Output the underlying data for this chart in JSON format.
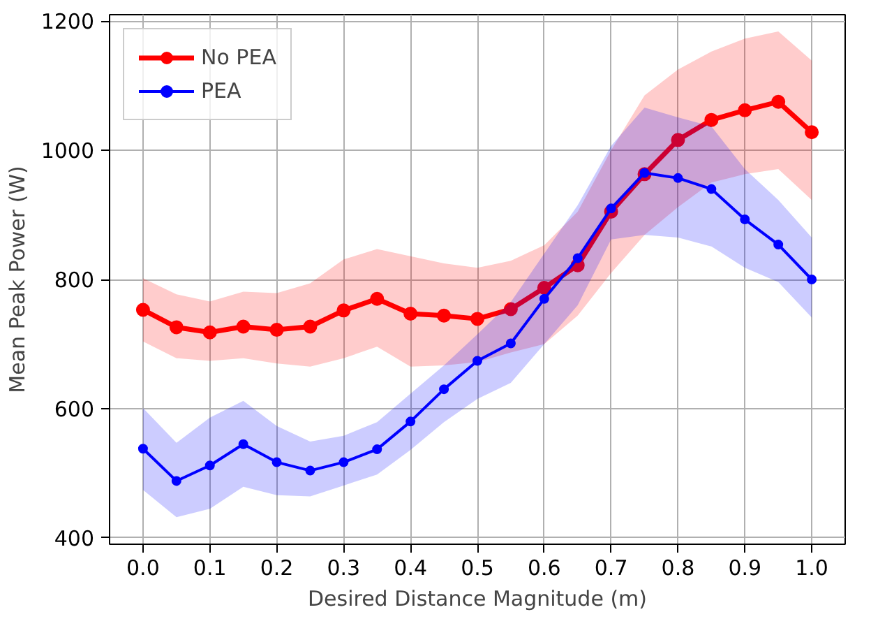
{
  "chart_data": {
    "type": "line",
    "xlabel": "Desired Distance Magnitude (m)",
    "ylabel": "Mean Peak Power (W)",
    "x": [
      0.0,
      0.05,
      0.1,
      0.15,
      0.2,
      0.25,
      0.3,
      0.35,
      0.4,
      0.45,
      0.5,
      0.55,
      0.6,
      0.65,
      0.7,
      0.75,
      0.8,
      0.85,
      0.9,
      0.95,
      1.0
    ],
    "series": [
      {
        "name": "No PEA",
        "color": "#ff0000",
        "values": [
          753,
          726,
          718,
          727,
          722,
          727,
          752,
          770,
          747,
          744,
          739,
          754,
          787,
          822,
          905,
          963,
          1016,
          1047,
          1062,
          1075,
          1028
        ],
        "lower": [
          704,
          678,
          674,
          678,
          670,
          665,
          678,
          696,
          665,
          667,
          672,
          687,
          700,
          744,
          810,
          869,
          912,
          950,
          963,
          971,
          923
        ],
        "upper": [
          802,
          777,
          766,
          781,
          779,
          794,
          831,
          847,
          836,
          825,
          818,
          829,
          853,
          905,
          1000,
          1085,
          1125,
          1153,
          1173,
          1184,
          1139
        ]
      },
      {
        "name": "PEA",
        "color": "#0000ff",
        "values": [
          538,
          488,
          512,
          545,
          517,
          504,
          517,
          537,
          580,
          630,
          674,
          701,
          770,
          833,
          910,
          965,
          957,
          940,
          893,
          854,
          800
        ],
        "lower": [
          474,
          432,
          445,
          479,
          466,
          464,
          481,
          498,
          536,
          579,
          615,
          640,
          700,
          760,
          862,
          869,
          865,
          851,
          818,
          796,
          741
        ],
        "upper": [
          601,
          547,
          586,
          612,
          573,
          549,
          558,
          579,
          623,
          667,
          715,
          765,
          840,
          915,
          1007,
          1066,
          1051,
          1037,
          971,
          923,
          865
        ]
      }
    ],
    "xlim": [
      -0.05,
      1.05
    ],
    "ylim": [
      390,
      1210
    ],
    "xticks": [
      {
        "value": 0.0,
        "label": "0.0"
      },
      {
        "value": 0.1,
        "label": "0.1"
      },
      {
        "value": 0.2,
        "label": "0.2"
      },
      {
        "value": 0.3,
        "label": "0.3"
      },
      {
        "value": 0.4,
        "label": "0.4"
      },
      {
        "value": 0.5,
        "label": "0.5"
      },
      {
        "value": 0.6,
        "label": "0.6"
      },
      {
        "value": 0.7,
        "label": "0.7"
      },
      {
        "value": 0.8,
        "label": "0.8"
      },
      {
        "value": 0.9,
        "label": "0.9"
      },
      {
        "value": 1.0,
        "label": "1.0"
      }
    ],
    "yticks": [
      400,
      600,
      800,
      1000,
      1200
    ],
    "grid": true,
    "legend": "top left",
    "marker": "circle",
    "line_style": "solid"
  }
}
